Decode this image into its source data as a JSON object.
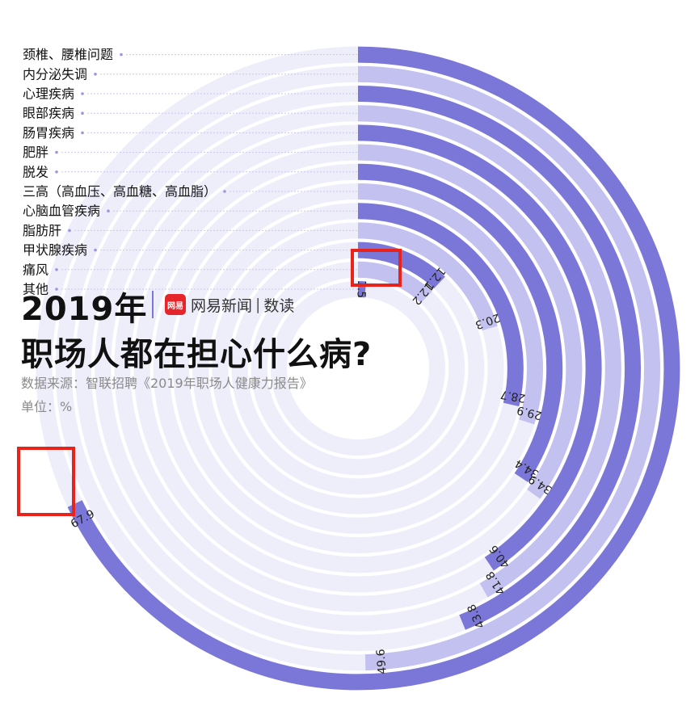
{
  "title_line1": "2019年",
  "brand": {
    "logo_text": "网易",
    "name": "网易新闻",
    "section": "数读"
  },
  "title_line2": "职场人都在担心什么病?",
  "source": "数据来源：智联招聘《2019年职场人健康力报告》",
  "unit": "单位：%",
  "colors": {
    "dark": "#7b77d9",
    "light": "#c3c1f0",
    "track": "#eeeefb",
    "highlight": "#e8231c"
  },
  "chart_data": {
    "type": "radial-bar",
    "title": "职场人都在担心什么病?",
    "categories": [
      "颈椎、腰椎问题",
      "内分泌失调",
      "心理疾病",
      "眼部疾病",
      "肠胃疾病",
      "肥胖",
      "脱发",
      "三高（高血压、高血糖、高血脂）",
      "心脑血管疾病",
      "脂肪肝",
      "甲状腺疾病",
      "痛风",
      "其他"
    ],
    "values": [
      67.9,
      49.6,
      43.8,
      41.8,
      40.6,
      34.9,
      34.4,
      29.9,
      28.7,
      20.3,
      12.1,
      12.2,
      1.5
    ],
    "value_labels": [
      "67.9",
      "49.6",
      "43.8",
      "41.8",
      "40.6",
      "34.9",
      "34.4",
      "29.9",
      "28.7",
      "20.3",
      "12.1",
      "12.2",
      "1.5"
    ],
    "unit": "%",
    "highlighted": [
      "67.9",
      "1.5"
    ]
  }
}
